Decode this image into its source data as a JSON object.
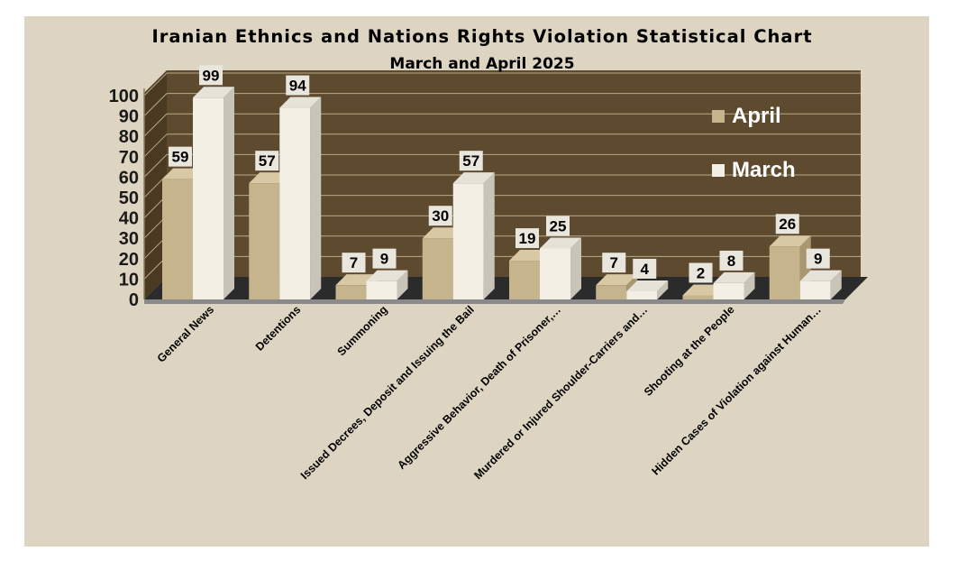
{
  "chart_data": {
    "type": "bar",
    "title": "Iranian Ethnics and Nations Rights Violation Statistical Chart",
    "subtitle": "March and April 2025",
    "categories": [
      "General News",
      "Detentions",
      "Summoning",
      "Issued Decrees, Deposit and Issuing the Bail",
      "Aggressive Behavior, Death of Prisoner,…",
      "Murdered or Injured Shoulder-Carriers and…",
      "Shooting at the People",
      "Hidden Cases of Violation against Human…"
    ],
    "series": [
      {
        "name": "April",
        "values": [
          59,
          57,
          7,
          30,
          19,
          7,
          2,
          26
        ]
      },
      {
        "name": "March",
        "values": [
          99,
          94,
          9,
          57,
          25,
          4,
          8,
          9
        ]
      }
    ],
    "yticks": [
      0,
      10,
      20,
      30,
      40,
      50,
      60,
      70,
      80,
      90,
      100
    ],
    "ylim": [
      0,
      100
    ],
    "grid": true,
    "legend_position": "top-right",
    "colors": {
      "April": "#c5b48c",
      "March": "#f4efe4",
      "plot_wall": "#5e4a2e",
      "plot_floor": "#2b2b2b",
      "background": "#ddd5c1"
    }
  }
}
